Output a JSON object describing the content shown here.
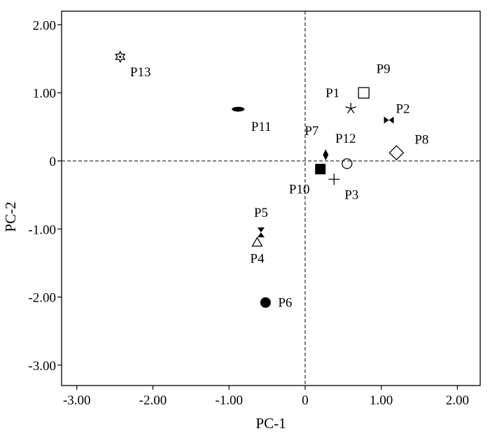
{
  "chart_data": {
    "type": "scatter",
    "title": "",
    "xlabel": "PC-1",
    "ylabel": "PC-2",
    "xlim": [
      -3.2,
      2.3
    ],
    "ylim": [
      -3.3,
      2.2
    ],
    "x_ticks": [
      -3,
      -2,
      -1,
      0,
      1,
      2
    ],
    "y_ticks": [
      -3,
      -2,
      -1,
      0,
      1,
      2
    ],
    "x_tick_labels": [
      "-3.00",
      "-2.00",
      "-1.00",
      "0",
      "1.00",
      "2.00"
    ],
    "y_tick_labels": [
      "-3.00",
      "-2.00",
      "-1.00",
      "0",
      "1.00",
      "2.00"
    ],
    "grid": false,
    "reference_lines": {
      "x": 0,
      "y": 0,
      "style": "dashed"
    },
    "points": [
      {
        "label": "P1",
        "x": 0.6,
        "y": 0.77,
        "marker": "asterisk"
      },
      {
        "label": "P2",
        "x": 1.1,
        "y": 0.6,
        "marker": "bowtie"
      },
      {
        "label": "P3",
        "x": 0.38,
        "y": -0.27,
        "marker": "plus"
      },
      {
        "label": "P4",
        "x": -0.63,
        "y": -1.2,
        "marker": "triangle-open"
      },
      {
        "label": "P5",
        "x": -0.58,
        "y": -1.05,
        "marker": "hourglass"
      },
      {
        "label": "P6",
        "x": -0.52,
        "y": -2.08,
        "marker": "circle-filled"
      },
      {
        "label": "P7",
        "x": 0.27,
        "y": 0.09,
        "marker": "diamond-filled"
      },
      {
        "label": "P8",
        "x": 1.2,
        "y": 0.12,
        "marker": "diamond-open"
      },
      {
        "label": "P9",
        "x": 0.77,
        "y": 1.0,
        "marker": "square-open"
      },
      {
        "label": "P10",
        "x": 0.2,
        "y": -0.12,
        "marker": "square-filled"
      },
      {
        "label": "P11",
        "x": -0.88,
        "y": 0.76,
        "marker": "ellipse-filled"
      },
      {
        "label": "P12",
        "x": 0.55,
        "y": -0.04,
        "marker": "circle-open"
      },
      {
        "label": "P13",
        "x": -2.43,
        "y": 1.53,
        "marker": "star"
      }
    ]
  }
}
